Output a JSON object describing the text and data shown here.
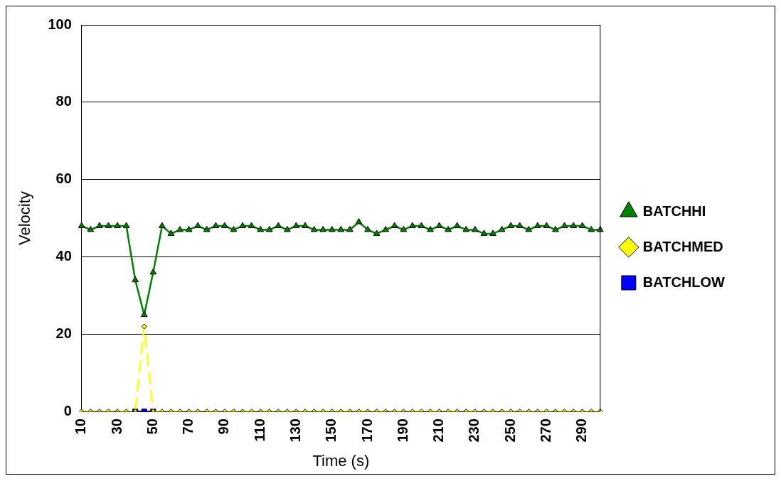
{
  "chart_data": {
    "type": "line",
    "xlabel": "Time (s)",
    "ylabel": "Velocity",
    "categories": [
      "10",
      null,
      null,
      null,
      "30",
      null,
      null,
      null,
      "50",
      null,
      null,
      null,
      "70",
      null,
      null,
      null,
      "90",
      null,
      null,
      null,
      "110",
      null,
      null,
      null,
      "130",
      null,
      null,
      null,
      "150",
      null,
      null,
      null,
      "170",
      null,
      null,
      null,
      "190",
      null,
      null,
      null,
      "210",
      null,
      null,
      null,
      "230",
      null,
      null,
      null,
      "250",
      null,
      null,
      null,
      "270",
      null,
      null,
      null,
      "290",
      null,
      null
    ],
    "series": [
      {
        "name": "BATCHLOW",
        "color": "#0000ff",
        "marker": "square",
        "line_style": "solid",
        "values": [
          null,
          null,
          null,
          null,
          null,
          null,
          0,
          0,
          0,
          null,
          null,
          null,
          null,
          null,
          null,
          null,
          null,
          null,
          null,
          null,
          null,
          null,
          null,
          null,
          null,
          null,
          null,
          null,
          null,
          null,
          null,
          null,
          null,
          null,
          null,
          null,
          null,
          null,
          null,
          null,
          null,
          null,
          null,
          null,
          null,
          null,
          null,
          null,
          null,
          null,
          null,
          null,
          null,
          null,
          null,
          null,
          null,
          null,
          null
        ]
      },
      {
        "name": "BATCHMED",
        "color": "#ffff00",
        "marker": "diamond",
        "line_style": "dashed",
        "values": [
          0,
          0,
          0,
          0,
          0,
          0,
          0,
          22,
          0,
          0,
          0,
          0,
          0,
          0,
          0,
          0,
          0,
          0,
          0,
          0,
          0,
          0,
          0,
          0,
          0,
          0,
          0,
          0,
          0,
          0,
          0,
          0,
          0,
          0,
          0,
          0,
          0,
          0,
          0,
          0,
          0,
          0,
          0,
          0,
          0,
          0,
          0,
          0,
          0,
          0,
          0,
          0,
          0,
          0,
          0,
          0,
          0,
          0,
          0
        ]
      },
      {
        "name": "BATCHHI",
        "color": "#008000",
        "marker": "triangle",
        "line_style": "solid",
        "values": [
          48,
          47,
          48,
          48,
          48,
          48,
          34,
          25,
          36,
          48,
          46,
          47,
          47,
          48,
          47,
          48,
          48,
          47,
          48,
          48,
          47,
          47,
          48,
          47,
          48,
          48,
          47,
          47,
          47,
          47,
          47,
          49,
          47,
          46,
          47,
          48,
          47,
          48,
          48,
          47,
          48,
          47,
          48,
          47,
          47,
          46,
          46,
          47,
          48,
          48,
          47,
          48,
          48,
          47,
          48,
          48,
          48,
          47,
          47
        ]
      }
    ],
    "ylim": [
      0,
      100
    ],
    "yticks": [
      0,
      20,
      40,
      60,
      80,
      100
    ],
    "grid": "y",
    "legend": "right"
  }
}
